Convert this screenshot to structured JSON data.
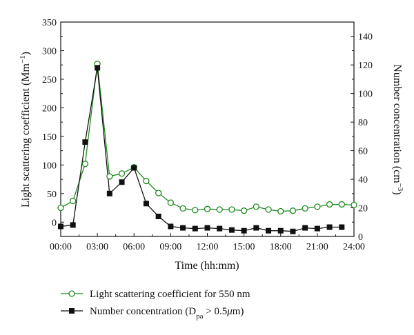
{
  "chart_data": {
    "type": "line",
    "title": "",
    "xlabel": "Time (hh:mm)",
    "ylabel_left": {
      "main": "Light scattering coefficient (Mm",
      "sup": "−1",
      "close": ")"
    },
    "ylabel_right": {
      "main": "Number concentration (cm",
      "sup": "−3",
      "close": ")"
    },
    "xlim": [
      0,
      24
    ],
    "ylim_left": [
      -25,
      350
    ],
    "ylim_right": [
      0,
      150
    ],
    "x_ticks": [
      0,
      3,
      6,
      9,
      12,
      15,
      18,
      21,
      24
    ],
    "x_tick_labels": [
      "00:00",
      "03:00",
      "06:00",
      "09:00",
      "12:00",
      "15:00",
      "18:00",
      "21:00",
      "24:00"
    ],
    "y_left_ticks": [
      0,
      50,
      100,
      150,
      200,
      250,
      300,
      350
    ],
    "y_left_tick_labels": [
      "0",
      "50",
      "100",
      "150",
      "200",
      "250",
      "300",
      "350"
    ],
    "y_right_ticks": [
      0,
      20,
      40,
      60,
      80,
      100,
      120,
      140
    ],
    "y_right_tick_labels": [
      "0",
      "20",
      "40",
      "60",
      "80",
      "100",
      "120",
      "140"
    ],
    "grid": false,
    "legend_position": "below",
    "series": [
      {
        "name": "Light scattering coefficient for 550 nm",
        "axis": "left",
        "color": "#1a8a1a",
        "marker": "open-circle",
        "x": [
          0,
          1,
          2,
          3,
          4,
          5,
          6,
          7,
          8,
          9,
          10,
          11,
          12,
          13,
          14,
          15,
          16,
          17,
          18,
          19,
          20,
          21,
          22,
          23,
          24
        ],
        "values": [
          25,
          37,
          102,
          277,
          80,
          85,
          96,
          72,
          51,
          34,
          24,
          21,
          23,
          22,
          22,
          20,
          27,
          22,
          19,
          20,
          24,
          27,
          31,
          31,
          30
        ]
      },
      {
        "name": "Number concentration (D",
        "name_subscript": "pa",
        "name_suffix": " > 0.5",
        "name_greek": "μ",
        "name_end": "m)",
        "axis": "right",
        "color": "#111111",
        "marker": "filled-square",
        "x": [
          0,
          1,
          2,
          3,
          4,
          5,
          6,
          7,
          8,
          9,
          10,
          11,
          12,
          13,
          14,
          15,
          16,
          17,
          18,
          19,
          20,
          21,
          22,
          23
        ],
        "values": [
          7,
          8,
          66,
          118,
          30,
          38,
          48,
          23,
          14,
          7,
          6,
          5.5,
          6,
          5.5,
          4.5,
          4,
          6,
          4,
          4,
          3.5,
          6,
          5.5,
          6.5,
          6.5
        ]
      }
    ]
  }
}
